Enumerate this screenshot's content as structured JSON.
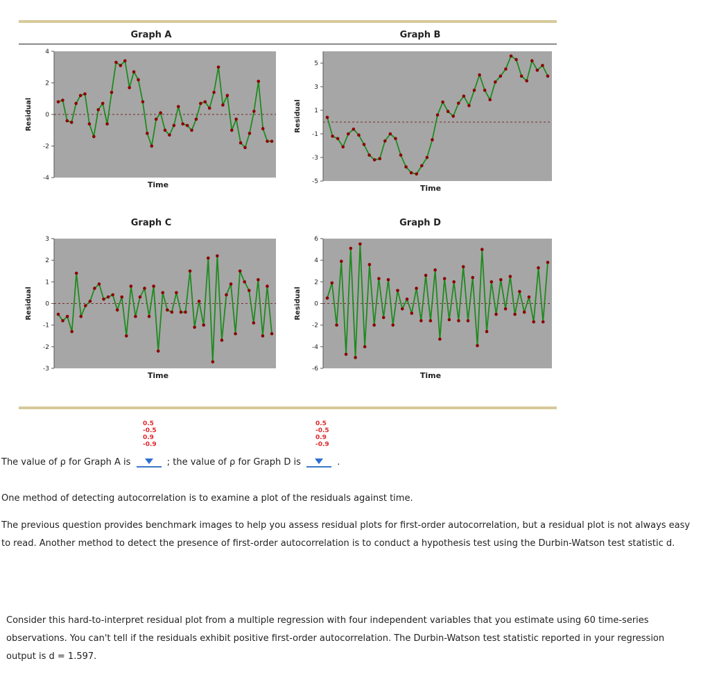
{
  "charts": [
    {
      "id": "A",
      "title": "Graph A",
      "xlabel": "Time",
      "ylabel": "Residual",
      "ylim": [
        -4,
        4
      ],
      "yticks": [
        4,
        2,
        0,
        -2,
        -4
      ],
      "chart_data": {
        "type": "line",
        "values": [
          0.8,
          0.9,
          -0.4,
          -0.5,
          0.7,
          1.2,
          1.3,
          -0.6,
          -1.4,
          0.3,
          0.7,
          -0.6,
          1.4,
          3.3,
          3.1,
          3.4,
          1.7,
          2.7,
          2.2,
          0.8,
          -1.2,
          -2.0,
          -0.3,
          0.1,
          -1.0,
          -1.3,
          -0.7,
          0.5,
          -0.6,
          -0.7,
          -1.0,
          -0.3,
          0.7,
          0.8,
          0.4,
          1.4,
          3.0,
          0.6,
          1.2,
          -1.0,
          -0.3,
          -1.8,
          -2.1,
          -1.2,
          0.2,
          2.1,
          -0.9,
          -1.7,
          -1.7
        ]
      }
    },
    {
      "id": "B",
      "title": "Graph B",
      "xlabel": "Time",
      "ylabel": "Residual",
      "ylim": [
        -5,
        6
      ],
      "yticks": [
        5,
        3,
        1,
        -1,
        -3,
        -5
      ],
      "chart_data": {
        "type": "line",
        "values": [
          0.4,
          -1.2,
          -1.4,
          -2.1,
          -1.0,
          -0.6,
          -1.1,
          -1.9,
          -2.8,
          -3.2,
          -3.1,
          -1.6,
          -1.0,
          -1.4,
          -2.8,
          -3.8,
          -4.3,
          -4.4,
          -3.7,
          -3.0,
          -1.5,
          0.6,
          1.7,
          0.9,
          0.5,
          1.6,
          2.2,
          1.4,
          2.7,
          4.0,
          2.7,
          1.9,
          3.4,
          3.9,
          4.5,
          5.6,
          5.3,
          3.9,
          3.5,
          5.2,
          4.4,
          4.8,
          3.9
        ]
      }
    },
    {
      "id": "C",
      "title": "Graph C",
      "xlabel": "Time",
      "ylabel": "Residual",
      "ylim": [
        -3,
        3
      ],
      "yticks": [
        3,
        2,
        1,
        0,
        -1,
        -2,
        -3
      ],
      "chart_data": {
        "type": "line",
        "values": [
          -0.5,
          -0.8,
          -0.6,
          -1.3,
          1.4,
          -0.6,
          -0.1,
          0.1,
          0.7,
          0.9,
          0.2,
          0.3,
          0.4,
          -0.3,
          0.3,
          -1.5,
          0.8,
          -0.6,
          0.3,
          0.7,
          -0.6,
          0.8,
          -2.2,
          0.5,
          -0.3,
          -0.4,
          0.5,
          -0.4,
          -0.4,
          1.5,
          -1.1,
          0.1,
          -1.0,
          2.1,
          -2.7,
          2.2,
          -1.7,
          0.4,
          0.9,
          -1.4,
          1.5,
          1.0,
          0.6,
          -0.9,
          1.1,
          -1.5,
          0.8,
          -1.4
        ]
      }
    },
    {
      "id": "D",
      "title": "Graph D",
      "xlabel": "Time",
      "ylabel": "Residual",
      "ylim": [
        -6,
        6
      ],
      "yticks": [
        6,
        4,
        2,
        0,
        -2,
        -4,
        -6
      ],
      "chart_data": {
        "type": "line",
        "values": [
          0.5,
          1.9,
          -2.0,
          3.9,
          -4.7,
          5.1,
          -5.0,
          5.5,
          -4.0,
          3.6,
          -2.0,
          2.3,
          -1.3,
          2.2,
          -2.0,
          1.2,
          -0.5,
          0.4,
          -0.9,
          1.4,
          -1.6,
          2.6,
          -1.6,
          3.1,
          -3.3,
          2.3,
          -1.5,
          2.0,
          -1.6,
          3.4,
          -1.6,
          2.4,
          -3.9,
          5.0,
          -2.6,
          2.0,
          -1.0,
          2.2,
          -0.5,
          2.5,
          -1.0,
          1.1,
          -0.8,
          0.6,
          -1.7,
          3.3,
          -1.7,
          3.8
        ]
      }
    }
  ],
  "question": {
    "prefix_a": "The value of ρ for Graph A is",
    "middle": "; the value of ρ for Graph D is",
    "suffix": ".",
    "options": [
      "0.5",
      "-0.5",
      "0.9",
      "-0.9"
    ]
  },
  "paragraphs": {
    "p1": "One method of detecting autocorrelation is to examine a plot of the residuals against time.",
    "p2": "The previous question provides benchmark images to help you assess residual plots for first-order autocorrelation, but a residual plot is not always easy to read. Another method to detect the presence of first-order autocorrelation is to conduct a hypothesis test using the Durbin-Watson test statistic d.",
    "p3": "Consider this hard-to-interpret residual plot from a multiple regression with four independent variables that you estimate using 60 time-series observations. You can't tell if the residuals exhibit positive first-order autocorrelation. The Durbin-Watson test statistic reported in your regression output is d = 1.597."
  },
  "colors": {
    "plot_bg": "#a6a6a6",
    "line": "#1f8a1f",
    "marker": "#8b0000",
    "zero_line": "#7a2a2a",
    "rule": "#d6c99a",
    "option_text": "#e0262b",
    "dropdown_icon": "#2b6fd1"
  },
  "icons": {
    "dropdown": "triangle-down-icon"
  }
}
